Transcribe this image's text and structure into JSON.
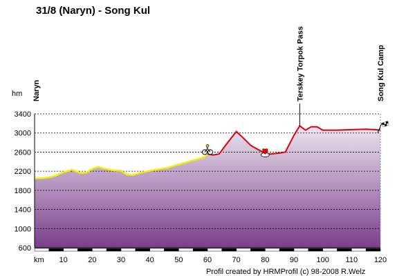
{
  "chart_data": {
    "type": "area",
    "title": "31/8 (Naryn) - Song Kul",
    "xlabel": "km",
    "ylabel": "hm",
    "xlim": [
      0,
      120
    ],
    "ylim": [
      600,
      3400
    ],
    "x_ticks": [
      "10",
      "20",
      "30",
      "40",
      "50",
      "60",
      "70",
      "80",
      "90",
      "100",
      "110",
      "120"
    ],
    "y_ticks": [
      "3400",
      "3000",
      "2600",
      "2200",
      "1800",
      "1400",
      "1000",
      "600"
    ],
    "grid": "horizontal dashed",
    "colors": {
      "fill_top": "#ece4ef",
      "fill_bottom": "#7a3f8c",
      "line_segment_1": "#f0f000",
      "line_segment_2": "#dd0000",
      "waypoint_line": "#000000"
    },
    "series": [
      {
        "x": [
          0,
          2,
          5,
          7,
          10,
          13,
          16,
          18,
          20,
          22,
          24,
          27,
          30,
          32,
          34,
          37,
          40,
          43,
          46,
          50,
          54,
          57,
          59,
          60,
          62,
          64,
          67,
          70,
          72,
          75,
          78,
          80,
          82,
          85,
          87,
          90,
          92,
          94,
          96,
          98,
          100,
          105,
          110,
          115,
          118,
          120
        ],
        "y": [
          2050,
          2050,
          2070,
          2100,
          2180,
          2230,
          2160,
          2170,
          2250,
          2290,
          2260,
          2220,
          2210,
          2130,
          2120,
          2170,
          2210,
          2240,
          2270,
          2340,
          2410,
          2460,
          2500,
          2560,
          2540,
          2560,
          2800,
          3030,
          2920,
          2740,
          2640,
          2570,
          2560,
          2580,
          2600,
          2950,
          3150,
          3060,
          3130,
          3130,
          3060,
          3060,
          3070,
          3080,
          3070,
          3060
        ]
      }
    ],
    "waypoints": [
      {
        "label": "Naryn",
        "x": 0
      },
      {
        "label": "Terskey Torpok Pass",
        "x": 92
      },
      {
        "label": "Song Kul Camp",
        "x": 120
      }
    ],
    "markers": [
      {
        "icon": "bicycle-icon",
        "x": 60,
        "y": 2600
      },
      {
        "icon": "heart-icon",
        "x": 80,
        "y": 2600
      },
      {
        "icon": "finish-flag-icon",
        "x": 120,
        "y": 3060
      }
    ],
    "credit": "Profil created by HRMProfil (c) 98-2008 R.Welz"
  }
}
